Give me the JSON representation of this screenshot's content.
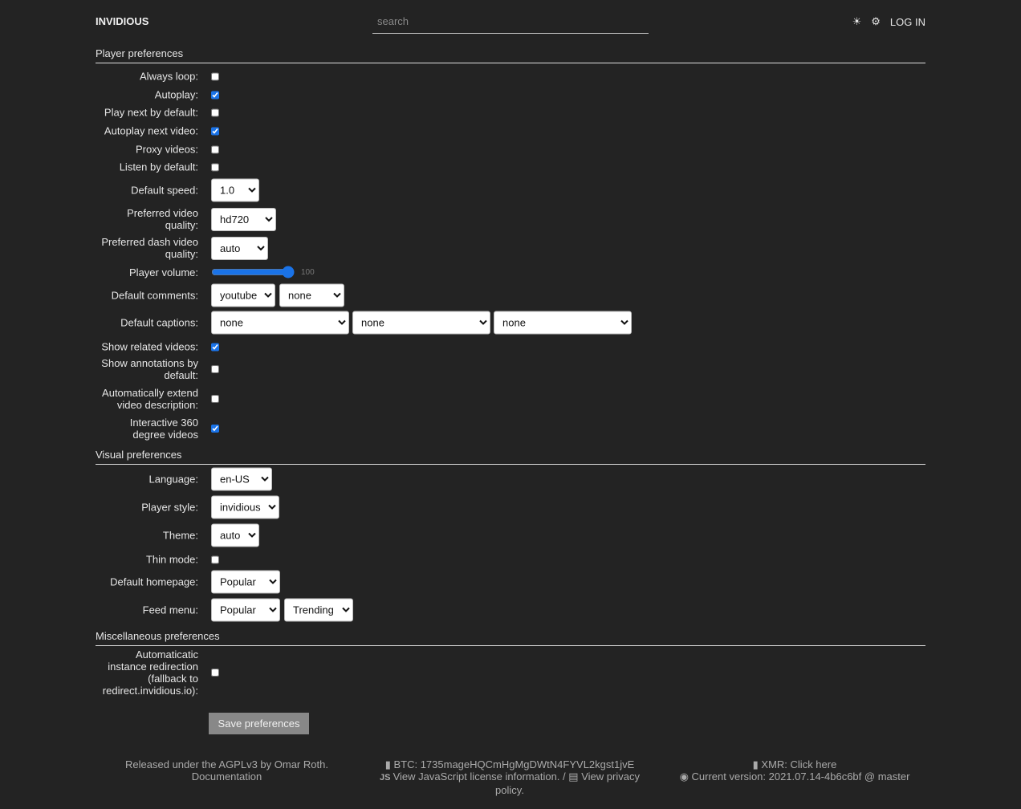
{
  "header": {
    "brand": "INVIDIOUS",
    "search_placeholder": "search",
    "theme_icon": "☀",
    "prefs_icon": "⚙",
    "login": "LOG IN"
  },
  "player": {
    "title": "Player preferences",
    "always_loop": "Always loop:",
    "autoplay": "Autoplay:",
    "play_next": "Play next by default:",
    "autoplay_next": "Autoplay next video:",
    "proxy": "Proxy videos:",
    "listen": "Listen by default:",
    "speed": "Default speed:",
    "speed_val": "1.0",
    "quality": "Preferred video quality:",
    "quality_val": "hd720",
    "dash": "Preferred dash video quality:",
    "dash_val": "auto",
    "volume": "Player volume:",
    "volume_val": "100",
    "comments": "Default comments:",
    "comments_1": "youtube",
    "comments_2": "none",
    "captions": "Default captions:",
    "captions_1": "none",
    "captions_2": "none",
    "captions_3": "none",
    "related": "Show related videos:",
    "annotations": "Show annotations by default:",
    "extend": "Automatically extend video description:",
    "v360": "Interactive 360 degree videos"
  },
  "visual": {
    "title": "Visual preferences",
    "language": "Language:",
    "language_val": "en-US",
    "player_style": "Player style:",
    "player_style_val": "invidious",
    "theme": "Theme:",
    "theme_val": "auto",
    "thin": "Thin mode:",
    "homepage": "Default homepage:",
    "homepage_val": "Popular",
    "feed": "Feed menu:",
    "feed_1": "Popular",
    "feed_2": "Trending"
  },
  "misc": {
    "title": "Miscellaneous preferences",
    "redirect": "Automaticatic instance redirection (fallback to redirect.invidious.io):",
    "save": "Save preferences"
  },
  "footer": {
    "released": "Released under the AGPLv3 by Omar Roth.",
    "docs": "Documentation",
    "btc": "BTC: 1735mageHQCmHgMgDWtN4FYVL2kgst1jvE",
    "js": "View JavaScript license information.",
    "sep": "/",
    "privacy": "View privacy policy.",
    "xmr": "XMR: Click here",
    "version": "Current version: 2021.07.14-4b6c6bf @ master"
  }
}
